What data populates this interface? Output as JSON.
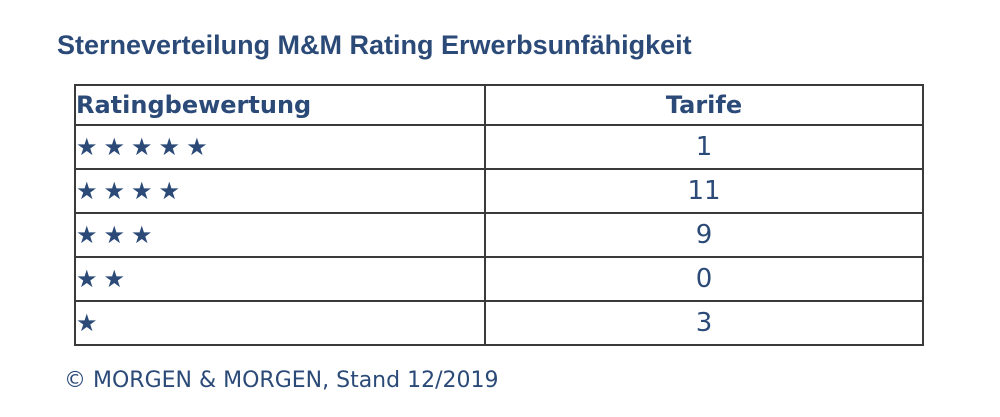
{
  "title": "Sterneverteilung M&M Rating Erwerbsunfähigkeit",
  "table": {
    "headers": {
      "rating": "Ratingbewertung",
      "tarife": "Tarife"
    },
    "rows": [
      {
        "stars": "★★★★★",
        "star_count": 5,
        "tarife": "1"
      },
      {
        "stars": "★★★★",
        "star_count": 4,
        "tarife": "11"
      },
      {
        "stars": "★★★",
        "star_count": 3,
        "tarife": "9"
      },
      {
        "stars": "★★",
        "star_count": 2,
        "tarife": "0"
      },
      {
        "stars": "★",
        "star_count": 1,
        "tarife": "3"
      }
    ]
  },
  "footer": "© MORGEN & MORGEN, Stand 12/2019",
  "colors": {
    "text": "#2b4a78",
    "border": "#3a3a3a"
  },
  "icons": {
    "star": "star-icon"
  }
}
